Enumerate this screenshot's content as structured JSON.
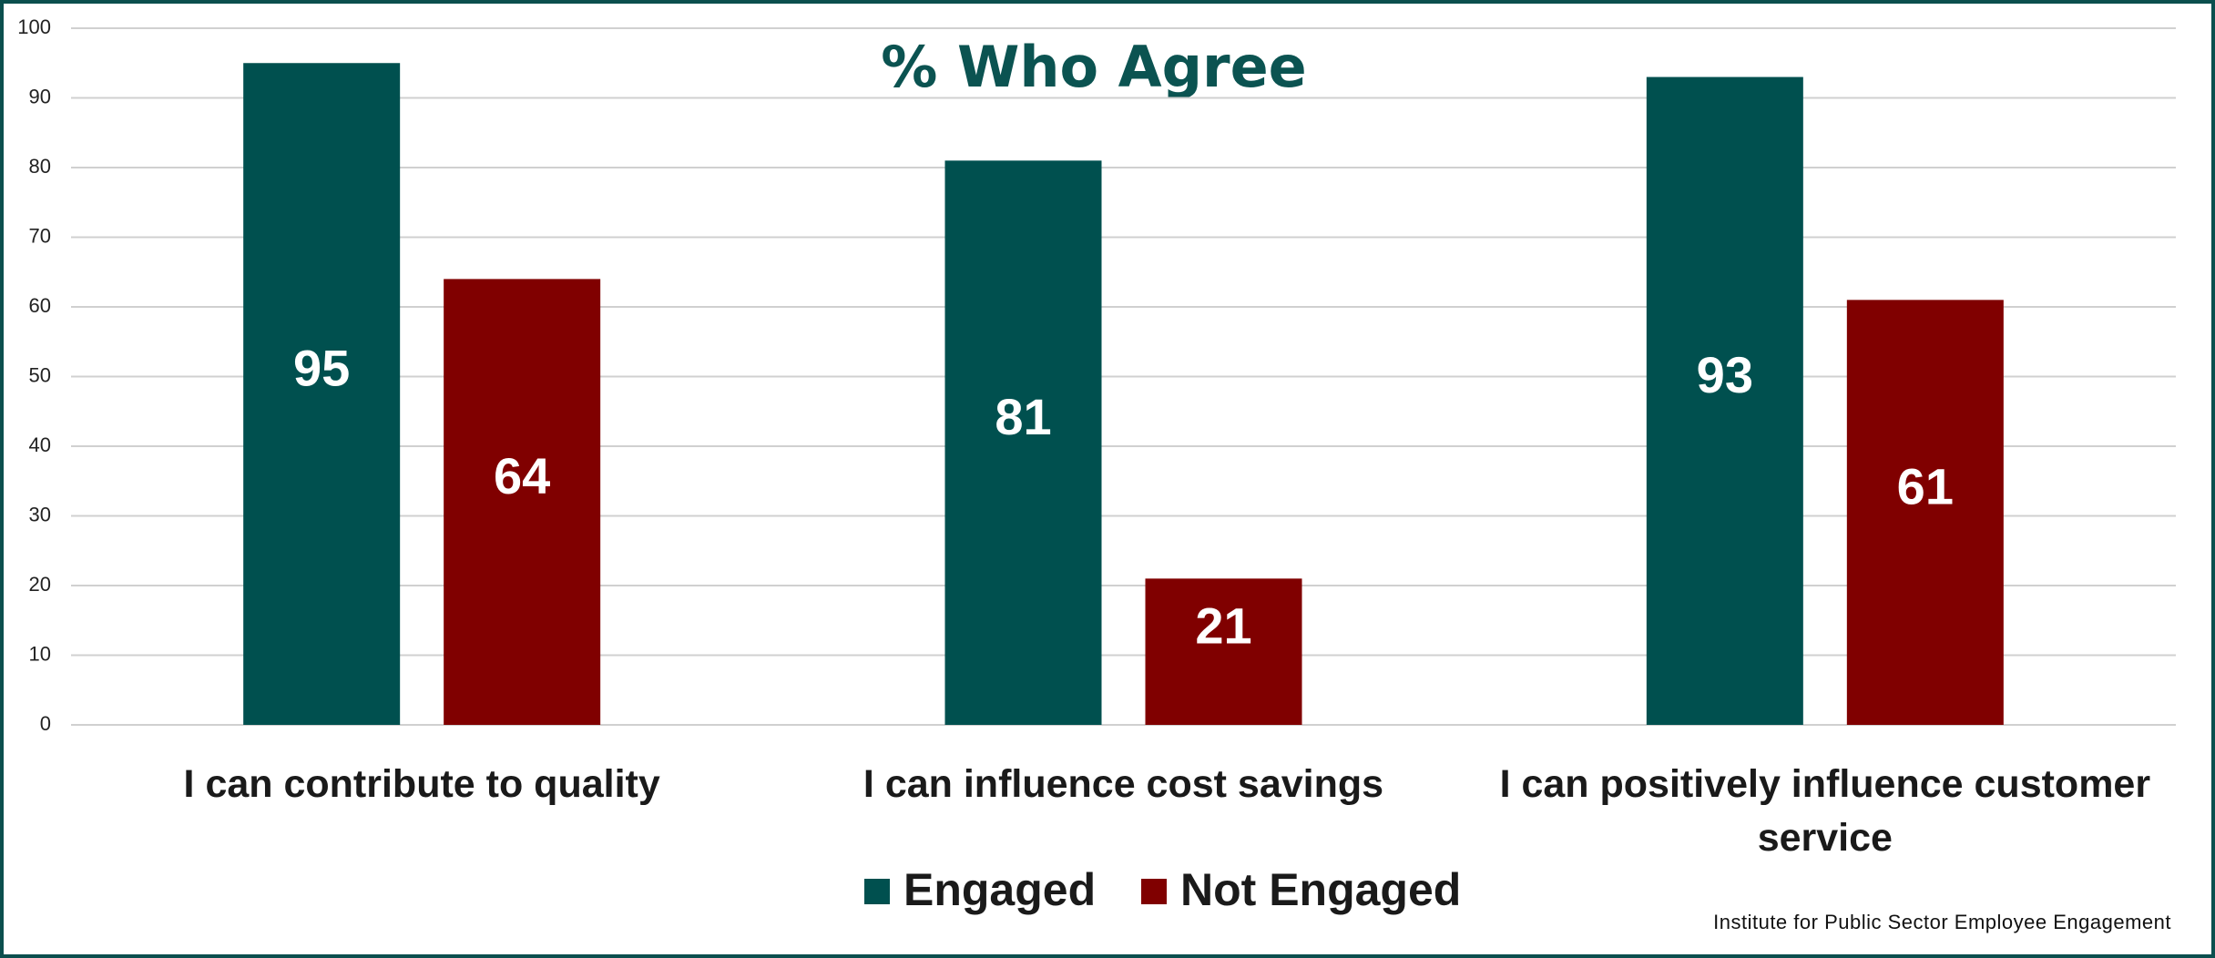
{
  "chart_data": {
    "type": "bar",
    "title": "% Who Agree",
    "categories": [
      "I can contribute to quality",
      "I can influence cost savings",
      "I can positively influence customer service"
    ],
    "series": [
      {
        "name": "Engaged",
        "color": "#00504f",
        "values": [
          95,
          81,
          93
        ]
      },
      {
        "name": "Not Engaged",
        "color": "#800000",
        "values": [
          64,
          21,
          61
        ]
      }
    ],
    "ylim": [
      0,
      100
    ],
    "yticks": [
      0,
      10,
      20,
      30,
      40,
      50,
      60,
      70,
      80,
      90,
      100
    ],
    "grid": true,
    "legend": "bottom",
    "source": "Institute for Public Sector Employee Engagement"
  }
}
